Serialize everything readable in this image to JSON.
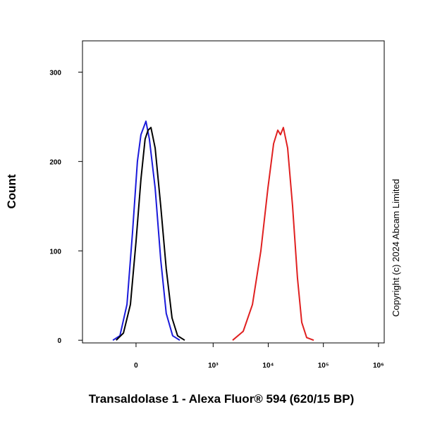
{
  "chart_data": {
    "type": "line",
    "xlabel": "Transaldolase 1 - Alexa Fluor® 594 (620/15 BP)",
    "ylabel": "Count",
    "annotation": "Copyright (c) 2024 Abcam Limited",
    "xscale": "biexponential",
    "xlim": [
      -370,
      1270000
    ],
    "xticks": [
      0,
      {
        "value": 1000,
        "label": "10³"
      },
      {
        "value": 10000,
        "label": "10⁴"
      },
      {
        "value": 100000,
        "label": "10⁵"
      },
      {
        "value": 1000000,
        "label": "10⁶"
      }
    ],
    "ylim": [
      -3,
      335
    ],
    "yticks": [
      0,
      100,
      200,
      300
    ],
    "series": [
      {
        "color": "#1a1adb",
        "x": [
          -90,
          -58,
          -31,
          -12,
          4.7,
          16.6,
          34,
          47,
          71,
          98,
          130,
          176,
          242
        ],
        "values": [
          0,
          5,
          40,
          120,
          200,
          230,
          245,
          225,
          170,
          90,
          30,
          5,
          0
        ]
      },
      {
        "color": "#000000",
        "x": [
          -74,
          -44,
          -19,
          0,
          16.6,
          31,
          42,
          53,
          71,
          98,
          130,
          171,
          220,
          300
        ],
        "values": [
          0,
          8,
          40,
          110,
          180,
          225,
          235,
          238,
          215,
          150,
          80,
          25,
          5,
          0
        ]
      },
      {
        "color": "#e02020",
        "x": [
          2260,
          3520,
          5170,
          7340,
          9850,
          12500,
          14900,
          16700,
          18800,
          22500,
          27600,
          33900,
          40500,
          49800,
          66800
        ],
        "values": [
          0,
          10,
          40,
          100,
          170,
          220,
          235,
          230,
          238,
          215,
          150,
          70,
          20,
          3,
          0
        ]
      }
    ]
  }
}
